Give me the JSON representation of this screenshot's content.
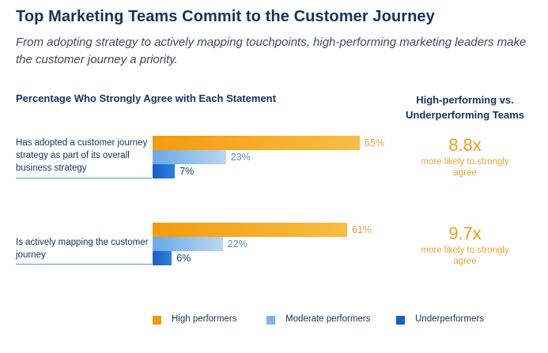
{
  "header": {
    "title": "Top Marketing Teams Commit to the Customer Journey",
    "subtitle": "From adopting strategy to actively mapping touchpoints, high-performing marketing leaders make the customer journey a priority."
  },
  "chart_data": {
    "type": "bar",
    "orientation": "horizontal",
    "title": "Percentage Who Strongly Agree with Each Statement",
    "categories": [
      "Has adopted a customer journey strategy as part of its overall business strategy",
      "Is actively mapping the customer journey"
    ],
    "series": [
      {
        "name": "High performers",
        "values": [
          65,
          61
        ],
        "labels": [
          "65%",
          "61%"
        ],
        "color": "#f49b0e"
      },
      {
        "name": "Moderate performers",
        "values": [
          23,
          22
        ],
        "labels": [
          "23%",
          "22%"
        ],
        "color": "#6aa8e6"
      },
      {
        "name": "Underperformers",
        "values": [
          7,
          6
        ],
        "labels": [
          "7%",
          "6%"
        ],
        "color": "#1560c4"
      }
    ],
    "unit": "%",
    "comparison": {
      "heading": "High-performing vs. Underperforming Teams",
      "items": [
        {
          "ratio": "8.8x",
          "note": "more likely to strongly agree"
        },
        {
          "ratio": "9.7x",
          "note": "more likely to strongly agree"
        }
      ]
    },
    "legend_position": "bottom",
    "grid": false
  },
  "colors": {
    "title": "#16325c",
    "high": "#f49b0e",
    "moderate": "#6aa8e6",
    "under": "#1560c4",
    "ratio": "#f29a1a"
  }
}
